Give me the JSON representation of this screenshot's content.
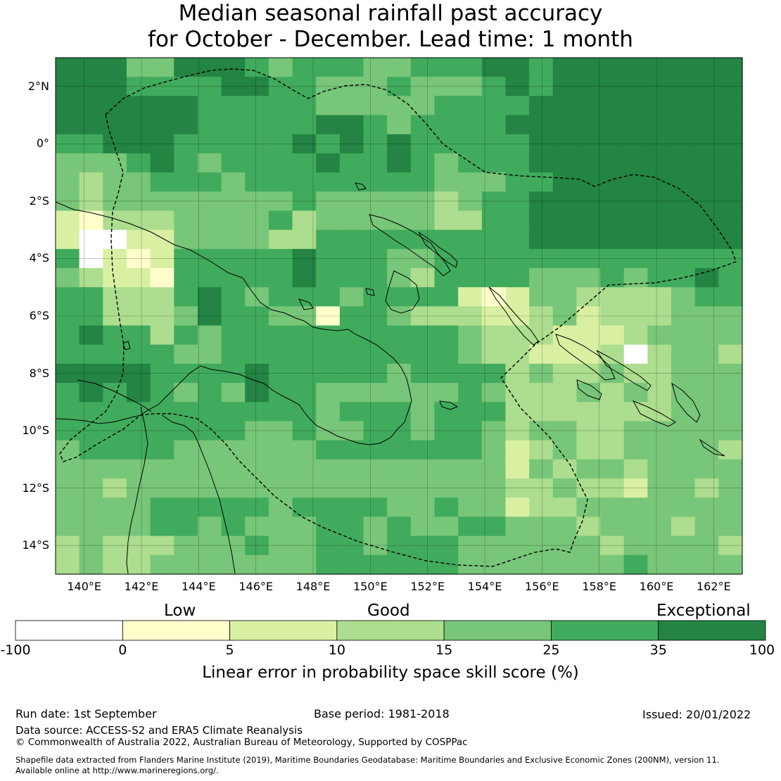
{
  "title": {
    "line1": "Median seasonal rainfall past accuracy",
    "line2": "for October - December. Lead time: 1 month"
  },
  "map": {
    "lat_range": [
      -15,
      3
    ],
    "lon_range": [
      139,
      163
    ],
    "lat_ticks": [
      {
        "value": 2,
        "label": "2°N"
      },
      {
        "value": 0,
        "label": "0°"
      },
      {
        "value": -2,
        "label": "2°S"
      },
      {
        "value": -4,
        "label": "4°S"
      },
      {
        "value": -6,
        "label": "6°S"
      },
      {
        "value": -8,
        "label": "8°S"
      },
      {
        "value": -10,
        "label": "10°S"
      },
      {
        "value": -12,
        "label": "12°S"
      },
      {
        "value": -14,
        "label": "14°S"
      }
    ],
    "lon_ticks": [
      {
        "value": 140,
        "label": "140°E"
      },
      {
        "value": 142,
        "label": "142°E"
      },
      {
        "value": 144,
        "label": "144°E"
      },
      {
        "value": 146,
        "label": "146°E"
      },
      {
        "value": 148,
        "label": "148°E"
      },
      {
        "value": 150,
        "label": "150°E"
      },
      {
        "value": 152,
        "label": "152°E"
      },
      {
        "value": 154,
        "label": "154°E"
      },
      {
        "value": 156,
        "label": "156°E"
      },
      {
        "value": 158,
        "label": "158°E"
      },
      {
        "value": 160,
        "label": "160°E"
      },
      {
        "value": 162,
        "label": "162°E"
      }
    ],
    "grid_lines": true,
    "cell_size_deg": 0.83,
    "skill_rows_north_to_south": [
      "66644666545554455566566666666",
      "66655556655444544456566666666",
      "66666655555444445555666666666",
      "66666655555665455556666666666",
      "55666555556565655555666666666",
      "44456545555655654555666666666",
      "43445554555555554445566666666",
      "43444444445444443455666666666",
      "21333444453444443355666666666",
      "20022444433555555555666666666",
      "50212555556555445555555555555",
      "43221555556555435555444545565",
      "55333565455545555212443333455",
      "55333465544155433322342333444",
      "56553545555555555433322234444",
      "55555445555555555433222303443",
      "66665555655555455553433433444",
      "56565454655444444543334343444",
      "55555555555455545553333333444",
      "55555555445445545543443344444",
      "45555444444555555542343344443",
      "44444444444444444442434434444",
      "44344444444444444443343324434",
      "44445555545555445442334444444",
      "44445545444554544554443444344",
      "34333444544554555444444344443",
      "34334444444555555444444454444"
    ]
  },
  "colorbar": {
    "categories": [
      "Low",
      "Good",
      "Exceptional"
    ],
    "ticks": [
      "-100",
      "0",
      "5",
      "10",
      "15",
      "25",
      "35",
      "100"
    ],
    "colors": [
      "#ffffff",
      "#ffffcc",
      "#d9f0a3",
      "#addd8e",
      "#78c679",
      "#41ab5d",
      "#238443"
    ],
    "title": "Linear error in probability space skill score (%)"
  },
  "footer": {
    "run_date": "Run date: 1st September",
    "base_period": "Base period: 1981-2018",
    "issued": "Issued: 20/01/2022",
    "data_source": "Data source: ACCESS-S2 and ERA5 Climate Reanalysis",
    "copyright": "© Commonwealth of Australia 2022, Australian Bureau of Meteorology, Supported by COSPPac",
    "shapefile_1": "Shapefile data extracted from Flanders Marine Institute (2019), Maritime Boundaries Geodatabase: Maritime Boundaries and Exclusive Economic Zones (200NM), version 11.",
    "shapefile_2": "Available online at http://www.marineregions.org/."
  }
}
